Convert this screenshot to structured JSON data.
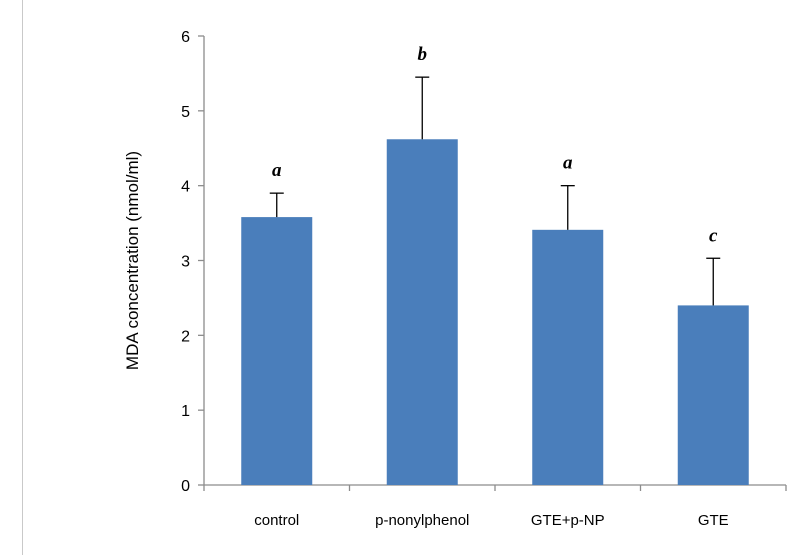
{
  "chart_data": {
    "type": "bar",
    "categories": [
      "control",
      "p-nonylphenol",
      "GTE+p-NP",
      "GTE"
    ],
    "values": [
      3.58,
      4.62,
      3.41,
      2.4
    ],
    "error_upper": [
      3.9,
      5.45,
      4.0,
      3.03
    ],
    "significance_labels": [
      "a",
      "b",
      "a",
      "c"
    ],
    "ylabel": "MDA concentration (nmol/ml)",
    "xlabel": "",
    "ylim": [
      0,
      6
    ],
    "yticks": [
      0,
      1,
      2,
      3,
      4,
      5,
      6
    ],
    "bar_color": "#4a7ebb",
    "grid": false
  }
}
